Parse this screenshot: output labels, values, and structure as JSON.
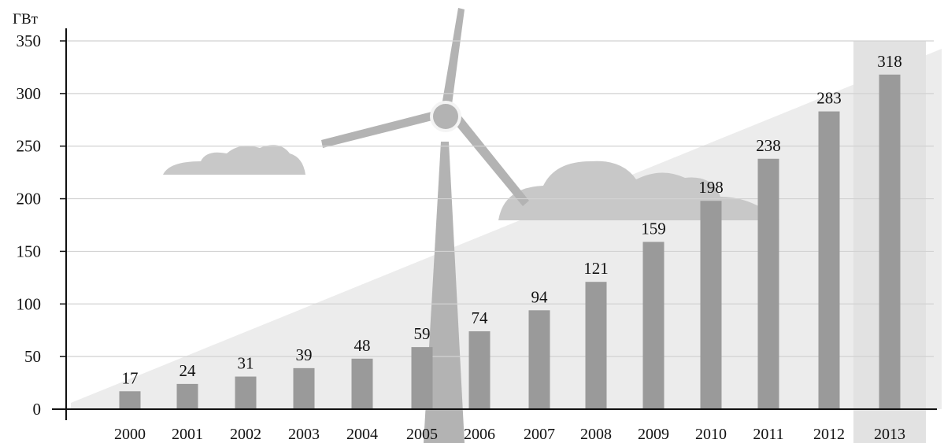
{
  "chart_data": {
    "type": "bar",
    "title": "",
    "xlabel": "",
    "ylabel": "ГВт",
    "categories": [
      "2000",
      "2001",
      "2002",
      "2003",
      "2004",
      "2005",
      "2006",
      "2007",
      "2008",
      "2009",
      "2010",
      "2011",
      "2012",
      "2013"
    ],
    "values": [
      17,
      24,
      31,
      39,
      48,
      59,
      74,
      94,
      121,
      159,
      198,
      238,
      283,
      318
    ],
    "data_labels": [
      "17",
      "24",
      "31",
      "39",
      "48",
      "59",
      "74",
      "94",
      "121",
      "159",
      "198",
      "238",
      "283",
      "318"
    ],
    "ylim": [
      0,
      350
    ],
    "yticks": [
      0,
      50,
      100,
      150,
      200,
      250,
      300,
      350
    ],
    "ytick_labels": [
      "0",
      "50",
      "100",
      "150",
      "200",
      "250",
      "300",
      "350"
    ],
    "grid": true,
    "highlight_category": "2013",
    "colors": {
      "bar": "#9a9a9a",
      "grid": "#d2d2d2",
      "axis": "#111111",
      "background_wedge": "#ececec",
      "highlight_band": "#e2e2e2",
      "turbine": "#b3b3b3",
      "cloud": "#c8c8c8"
    }
  }
}
